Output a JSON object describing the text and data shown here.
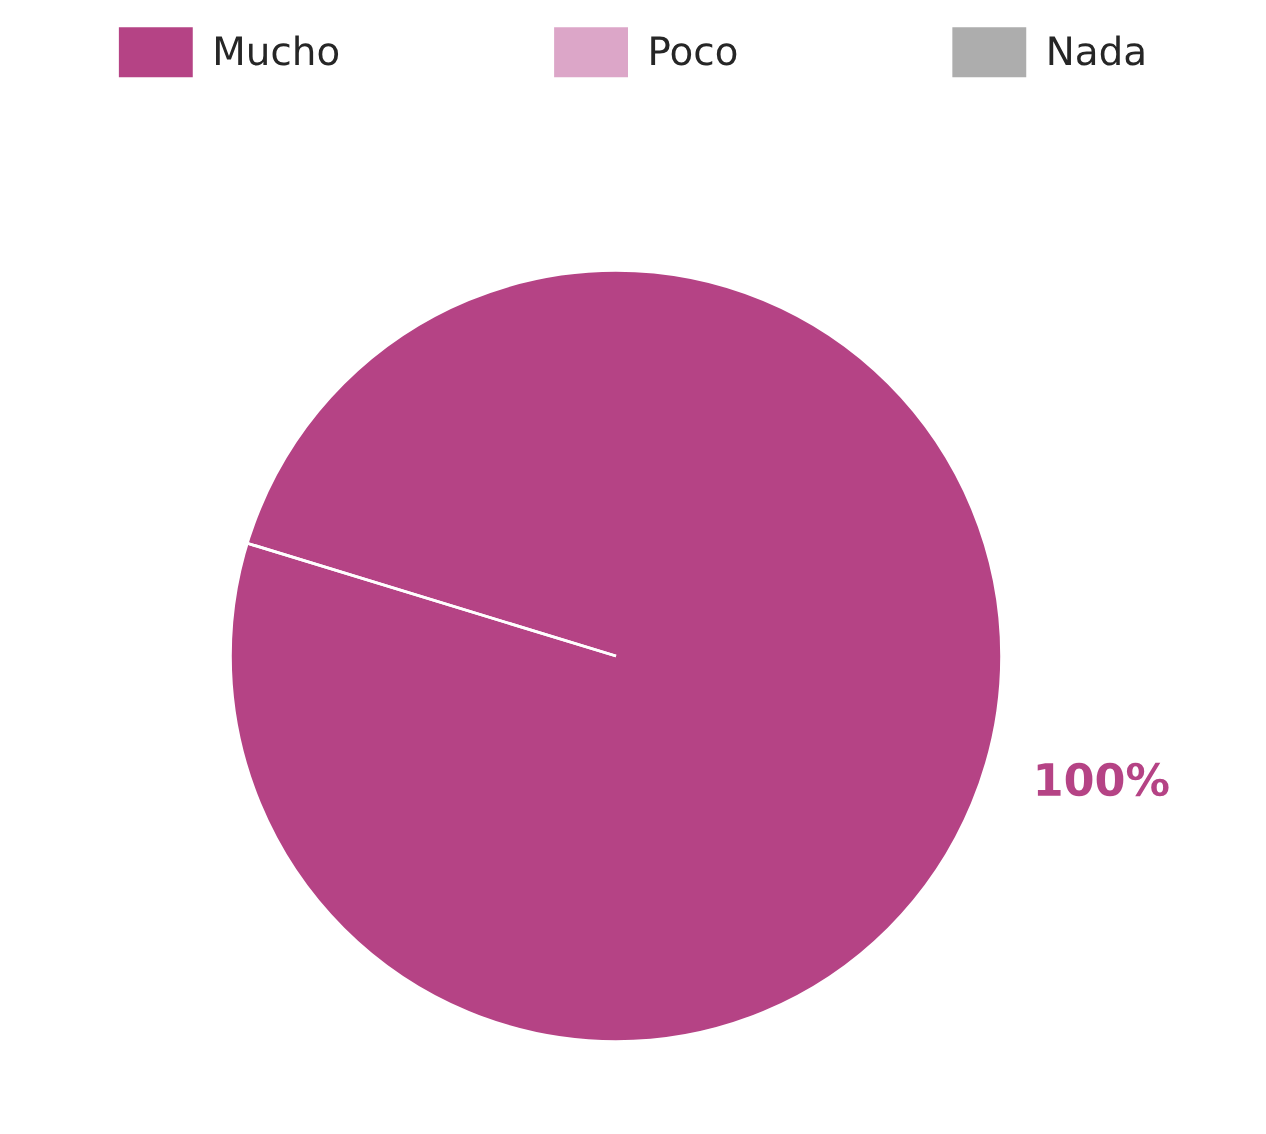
{
  "chart_data": {
    "type": "pie",
    "categories": [
      "Mucho",
      "Poco",
      "Nada"
    ],
    "values": [
      100,
      0,
      0
    ],
    "colors": [
      "#b54385",
      "#dca6c8",
      "#adadad"
    ],
    "value_labels": [
      "100%",
      null,
      null
    ],
    "legend": "top"
  }
}
